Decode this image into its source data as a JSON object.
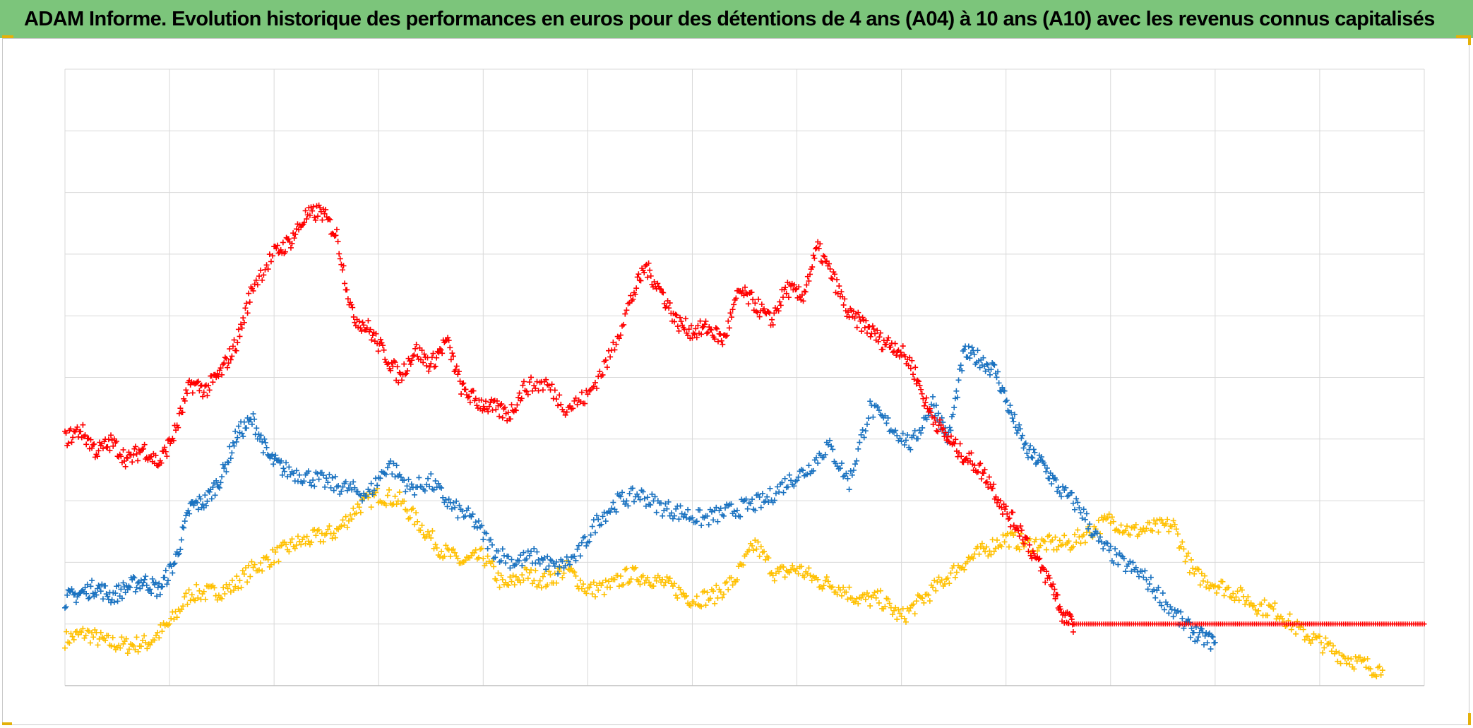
{
  "title": "ADAM Informe. Evolution historique des performances en euros pour des détentions de 4 ans (A04) à 10 ans (A10) avec les revenus connus capitalisés",
  "colors": {
    "title_bar": "#7cc57b",
    "grid": "#d9d9d9",
    "zero_line": "#bfbfbf",
    "corner_marks": "#e4b10a"
  },
  "chart_data": {
    "type": "scatter",
    "marker": "plus",
    "title": "ADAM Informe. Evolution historique des performances en euros pour des détentions de 4 ans (A04) à 10 ans (A10) avec les revenus connus capitalisés",
    "xlabel": "",
    "ylabel": "",
    "x_tick_labels": [],
    "y_tick_labels": [],
    "grid": true,
    "xlim": [
      0,
      13
    ],
    "ylim": [
      -1,
      9
    ],
    "series": [
      {
        "name": "Rouge",
        "color": "#ff0000",
        "x": [
          0,
          0.15,
          0.3,
          0.45,
          0.6,
          0.75,
          0.9,
          1.05,
          1.2,
          1.35,
          1.5,
          1.65,
          1.8,
          2.0,
          2.15,
          2.3,
          2.45,
          2.6,
          2.75,
          2.9,
          3.05,
          3.2,
          3.35,
          3.5,
          3.65,
          3.8,
          3.95,
          4.1,
          4.25,
          4.4,
          4.6,
          4.8,
          5.0,
          5.2,
          5.4,
          5.55,
          5.7,
          5.85,
          6.0,
          6.15,
          6.3,
          6.45,
          6.6,
          6.75,
          6.9,
          7.05,
          7.2,
          7.35,
          7.5,
          7.65,
          7.8,
          7.95,
          8.1,
          8.25,
          8.4,
          8.55,
          8.7,
          8.85,
          9.0,
          9.15,
          9.3,
          9.45,
          9.55,
          9.65
        ],
        "y": [
          3.0,
          3.15,
          2.8,
          2.95,
          2.65,
          2.85,
          2.6,
          3.1,
          3.9,
          3.8,
          4.1,
          4.6,
          5.5,
          6.0,
          6.2,
          6.6,
          6.7,
          6.3,
          5.0,
          4.8,
          4.4,
          4.0,
          4.45,
          4.2,
          4.6,
          3.8,
          3.6,
          3.5,
          3.4,
          3.85,
          3.9,
          3.5,
          3.7,
          4.3,
          5.2,
          5.8,
          5.4,
          4.9,
          4.75,
          4.8,
          4.6,
          5.4,
          5.2,
          4.9,
          5.45,
          5.3,
          6.1,
          5.6,
          5.0,
          4.85,
          4.6,
          4.5,
          4.2,
          3.5,
          3.1,
          2.8,
          2.6,
          2.3,
          1.8,
          1.5,
          1.0,
          0.6,
          0.1,
          0.0
        ],
        "x2": [
          0.05,
          0.2,
          0.35,
          0.5,
          0.65,
          0.8,
          0.95,
          1.1,
          1.25,
          1.4,
          1.55,
          1.7,
          1.85,
          2.05,
          2.2,
          2.35,
          2.5,
          2.65,
          2.8,
          2.95,
          3.1,
          3.25,
          3.4,
          3.55,
          3.7,
          3.85,
          4.0,
          4.15,
          4.3,
          4.45,
          4.65,
          4.85,
          5.05,
          5.25,
          5.45,
          5.6,
          5.75,
          5.9,
          6.05,
          6.2,
          6.35,
          6.5,
          6.65,
          6.8,
          6.95,
          7.1,
          7.25,
          7.4,
          7.55,
          7.7,
          7.85,
          8.0,
          8.15,
          8.3,
          8.45,
          8.6,
          8.75,
          8.9,
          9.05,
          9.2,
          9.35,
          9.5
        ],
        "flat_segment": {
          "x_start": 9.65,
          "x_end": 13.0,
          "y": 0.0
        }
      },
      {
        "name": "Bleu",
        "color": "#1a72c0",
        "x": [
          0,
          0.15,
          0.3,
          0.45,
          0.6,
          0.75,
          0.9,
          1.05,
          1.2,
          1.35,
          1.5,
          1.65,
          1.8,
          1.95,
          2.1,
          2.3,
          2.5,
          2.7,
          2.9,
          3.1,
          3.3,
          3.5,
          3.7,
          3.9,
          4.1,
          4.3,
          4.5,
          4.7,
          4.9,
          5.1,
          5.3,
          5.5,
          5.7,
          5.9,
          6.1,
          6.3,
          6.5,
          6.7,
          6.9,
          7.1,
          7.3,
          7.5,
          7.7,
          7.9,
          8.1,
          8.3,
          8.45,
          8.6,
          8.75,
          8.9,
          9.05,
          9.2,
          9.35,
          9.5,
          9.7,
          9.9,
          10.1,
          10.3,
          10.5,
          10.7,
          10.85,
          11.0
        ],
        "y": [
          0.4,
          0.5,
          0.6,
          0.45,
          0.6,
          0.7,
          0.55,
          1.0,
          1.9,
          2.0,
          2.4,
          3.1,
          3.3,
          2.7,
          2.5,
          2.4,
          2.3,
          2.2,
          2.1,
          2.6,
          2.2,
          2.3,
          1.9,
          1.7,
          1.2,
          1.0,
          1.1,
          0.9,
          1.1,
          1.7,
          2.0,
          2.1,
          1.9,
          1.8,
          1.7,
          1.8,
          1.9,
          2.0,
          2.3,
          2.5,
          2.9,
          2.3,
          3.5,
          3.2,
          2.9,
          3.6,
          3.0,
          4.4,
          4.3,
          4.1,
          3.4,
          2.8,
          2.6,
          2.2,
          1.9,
          1.3,
          1.0,
          0.8,
          0.4,
          0.0,
          -0.2,
          -0.3
        ]
      },
      {
        "name": "Jaune",
        "color": "#ffc000",
        "x": [
          0,
          0.2,
          0.4,
          0.6,
          0.8,
          1.0,
          1.2,
          1.4,
          1.6,
          1.8,
          2.0,
          2.2,
          2.4,
          2.6,
          2.8,
          3.0,
          3.2,
          3.4,
          3.6,
          3.8,
          4.0,
          4.2,
          4.4,
          4.6,
          4.8,
          5.0,
          5.2,
          5.4,
          5.6,
          5.8,
          6.0,
          6.2,
          6.4,
          6.6,
          6.8,
          7.0,
          7.2,
          7.4,
          7.6,
          7.8,
          8.0,
          8.2,
          8.4,
          8.6,
          8.8,
          9.0,
          9.2,
          9.4,
          9.6,
          9.8,
          10.0,
          10.2,
          10.4,
          10.6,
          10.8,
          11.0,
          11.2,
          11.4,
          11.6,
          11.8,
          12.0,
          12.2,
          12.4,
          12.6
        ],
        "y": [
          -0.25,
          -0.15,
          -0.3,
          -0.35,
          -0.3,
          0.0,
          0.5,
          0.5,
          0.6,
          0.9,
          1.1,
          1.3,
          1.4,
          1.5,
          1.9,
          2.1,
          2.0,
          1.6,
          1.2,
          1.0,
          1.1,
          0.6,
          0.8,
          0.7,
          0.9,
          0.55,
          0.6,
          0.8,
          0.75,
          0.6,
          0.4,
          0.45,
          0.7,
          1.3,
          0.8,
          0.9,
          0.7,
          0.6,
          0.4,
          0.4,
          0.1,
          0.4,
          0.7,
          1.0,
          1.2,
          1.4,
          1.3,
          1.3,
          1.3,
          1.5,
          1.7,
          1.5,
          1.55,
          1.6,
          0.8,
          0.65,
          0.5,
          0.3,
          0.2,
          -0.1,
          -0.3,
          -0.5,
          -0.65,
          -0.75
        ]
      }
    ]
  }
}
